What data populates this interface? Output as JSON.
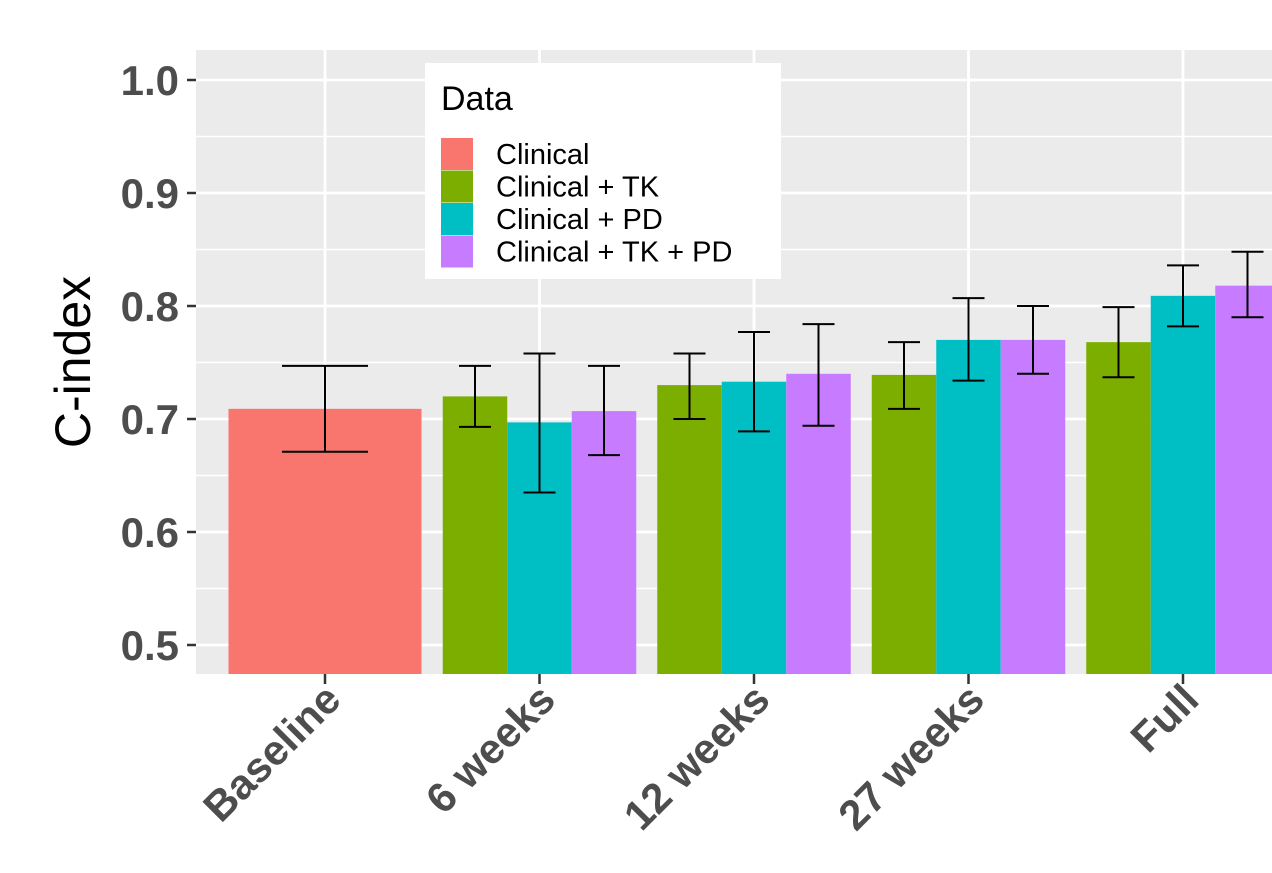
{
  "chart_data": {
    "type": "bar",
    "ylabel": "C-index",
    "ylim": [
      0.475,
      1.02
    ],
    "yticks": [
      "0.5",
      "0.6",
      "0.7",
      "0.8",
      "0.9",
      "1.0"
    ],
    "categories": [
      "Baseline",
      "6 weeks",
      "12 weeks",
      "27 weeks",
      "Full"
    ],
    "legend": {
      "title": "Data",
      "position": "top-left inside"
    },
    "grid": true,
    "error_bars": true,
    "series": [
      {
        "name": "Clinical",
        "color": "#F8766D",
        "values": [
          0.709,
          null,
          null,
          null,
          null
        ],
        "lower": [
          0.671,
          null,
          null,
          null,
          null
        ],
        "upper": [
          0.747,
          null,
          null,
          null,
          null
        ]
      },
      {
        "name": "Clinical + TK",
        "color": "#7CAE00",
        "values": [
          null,
          0.72,
          0.73,
          0.739,
          0.768
        ],
        "lower": [
          null,
          0.693,
          0.7,
          0.709,
          0.737
        ],
        "upper": [
          null,
          0.747,
          0.758,
          0.768,
          0.799
        ]
      },
      {
        "name": "Clinical + PD",
        "color": "#00BFC4",
        "values": [
          null,
          0.697,
          0.733,
          0.77,
          0.809
        ],
        "lower": [
          null,
          0.635,
          0.689,
          0.734,
          0.782
        ],
        "upper": [
          null,
          0.758,
          0.777,
          0.807,
          0.836
        ]
      },
      {
        "name": "Clinical + TK + PD",
        "color": "#C77CFF",
        "values": [
          null,
          0.707,
          0.74,
          0.77,
          0.818
        ],
        "lower": [
          null,
          0.668,
          0.694,
          0.74,
          0.79
        ],
        "upper": [
          null,
          0.747,
          0.784,
          0.8,
          0.848
        ]
      }
    ]
  }
}
